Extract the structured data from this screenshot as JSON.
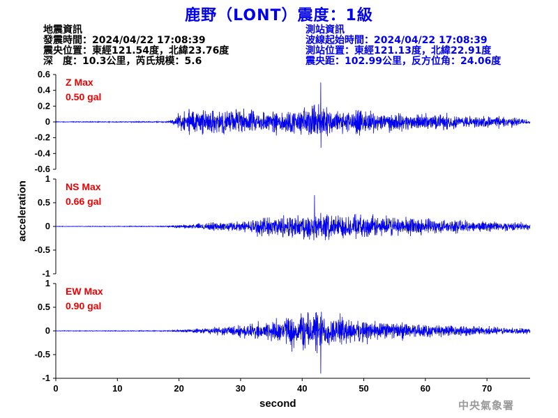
{
  "title": "鹿野（LONT）震度：1級",
  "event_info": {
    "header": "地震資訊",
    "origin_time": "發震時間：2024/04/22 17:08:39",
    "epicenter": "震央位置：東經121.54度，北緯23.76度",
    "depth_magnitude": "深　度：10.3公里，芮氏規模：5.6"
  },
  "station_info": {
    "header": "測站資訊",
    "wave_start": "波線起始時間：2024/04/22 17:08:39",
    "location": "測站位置：東經121.13度，北緯22.91度",
    "distance": "震央距：102.99公里，反方位角：24.06度"
  },
  "agency": "中央氣象署",
  "colors": {
    "title": "#0000ee",
    "trace": "#0000ee",
    "label": "#ee0000",
    "agency": "#9a9a9a"
  },
  "chart_data": [
    {
      "type": "line",
      "component": "Z",
      "label_line1": "Z Max",
      "label_line2": "0.50 gal",
      "max": 0.5,
      "ylim": [
        -0.6,
        0.6
      ],
      "yticks": [
        -0.6,
        -0.4,
        -0.2,
        0,
        0.2,
        0.4,
        0.6
      ],
      "ytick_labels": [
        "-0.6",
        "-0.4",
        "-0.2",
        "0",
        "0.2",
        "0.4",
        "0.6"
      ],
      "xlim": [
        0,
        77
      ],
      "envelope": {
        "x": [
          0,
          10,
          18,
          19,
          20,
          22,
          25,
          30,
          35,
          40,
          43,
          45,
          50,
          55,
          60,
          65,
          70,
          74,
          77
        ],
        "amp": [
          0.008,
          0.01,
          0.015,
          0.05,
          0.22,
          0.3,
          0.32,
          0.3,
          0.26,
          0.34,
          0.5,
          0.3,
          0.28,
          0.22,
          0.2,
          0.17,
          0.14,
          0.12,
          0.06
        ]
      }
    },
    {
      "type": "line",
      "component": "NS",
      "label_line1": "NS Max",
      "label_line2": "0.66 gal",
      "max": 0.66,
      "ylim": [
        -1,
        1
      ],
      "yticks": [
        -1,
        -0.5,
        0,
        0.5,
        1
      ],
      "ytick_labels": [
        "-1",
        "-0.5",
        "0",
        "0.5",
        "1"
      ],
      "xlim": [
        0,
        77
      ],
      "envelope": {
        "x": [
          0,
          10,
          18,
          20,
          22,
          25,
          30,
          35,
          40,
          42,
          44,
          46,
          50,
          55,
          60,
          65,
          70,
          74,
          77
        ],
        "amp": [
          0.01,
          0.012,
          0.02,
          0.05,
          0.1,
          0.16,
          0.22,
          0.42,
          0.55,
          0.66,
          0.55,
          0.5,
          0.48,
          0.38,
          0.35,
          0.26,
          0.22,
          0.18,
          0.12
        ]
      }
    },
    {
      "type": "line",
      "component": "EW",
      "label_line1": "EW Max",
      "label_line2": "0.90 gal",
      "max": 0.9,
      "ylim": [
        -1,
        1
      ],
      "yticks": [
        -1,
        -0.5,
        0,
        0.5,
        1
      ],
      "ytick_labels": [
        "-1",
        "-0.5",
        "0",
        "0.5",
        "1"
      ],
      "xticks": [
        0,
        10,
        20,
        30,
        40,
        50,
        60,
        70
      ],
      "xtick_labels": [
        "0",
        "10",
        "20",
        "30",
        "40",
        "50",
        "60",
        "70"
      ],
      "xlabel": "second",
      "xlim": [
        0,
        77
      ],
      "envelope": {
        "x": [
          0,
          10,
          18,
          20,
          22,
          25,
          30,
          35,
          40,
          43,
          45,
          50,
          55,
          60,
          65,
          70,
          74,
          77
        ],
        "amp": [
          0.01,
          0.012,
          0.02,
          0.04,
          0.08,
          0.15,
          0.25,
          0.45,
          0.75,
          0.9,
          0.6,
          0.45,
          0.35,
          0.28,
          0.22,
          0.18,
          0.15,
          0.1
        ]
      }
    }
  ],
  "ylabel": "acceleration"
}
